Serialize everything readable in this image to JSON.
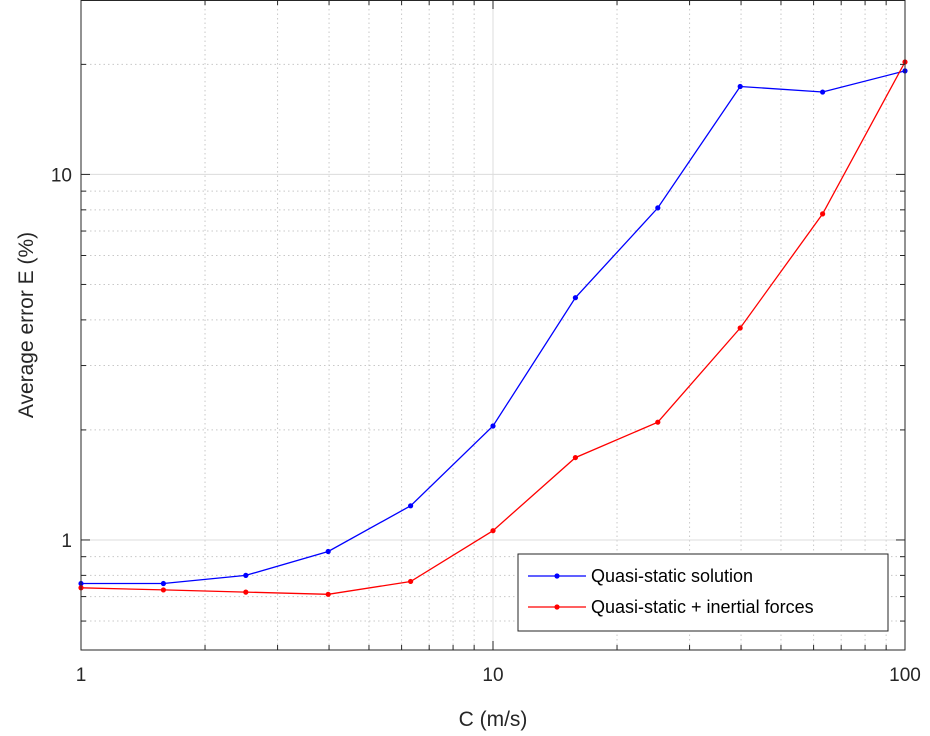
{
  "chart_data": {
    "type": "line",
    "xscale": "log",
    "yscale": "log",
    "xlabel": "C (m/s)",
    "ylabel": "Average error E (%)",
    "xlim": [
      1,
      100
    ],
    "ylim": [
      0.5,
      30
    ],
    "x_ticks": [
      1,
      10,
      100
    ],
    "x_tick_labels": [
      "1",
      "10",
      "100"
    ],
    "y_ticks": [
      1,
      10
    ],
    "y_tick_labels": [
      "1",
      "10"
    ],
    "grid": true,
    "legend_position": "bottom-right",
    "series": [
      {
        "name": "Quasi-static solution",
        "color": "#0000ff",
        "x": [
          1,
          1.585,
          2.512,
          3.981,
          6.31,
          10,
          15.85,
          25.12,
          39.81,
          63.1,
          100
        ],
        "y": [
          0.76,
          0.76,
          0.8,
          0.93,
          1.24,
          2.05,
          4.6,
          8.1,
          17.4,
          16.8,
          19.2
        ]
      },
      {
        "name": "Quasi-static + inertial forces",
        "color": "#ff0000",
        "x": [
          1,
          1.585,
          2.512,
          3.981,
          6.31,
          10,
          15.85,
          25.12,
          39.81,
          63.1,
          100
        ],
        "y": [
          0.74,
          0.73,
          0.72,
          0.71,
          0.77,
          1.06,
          1.68,
          2.1,
          3.8,
          7.8,
          20.3
        ]
      }
    ]
  }
}
